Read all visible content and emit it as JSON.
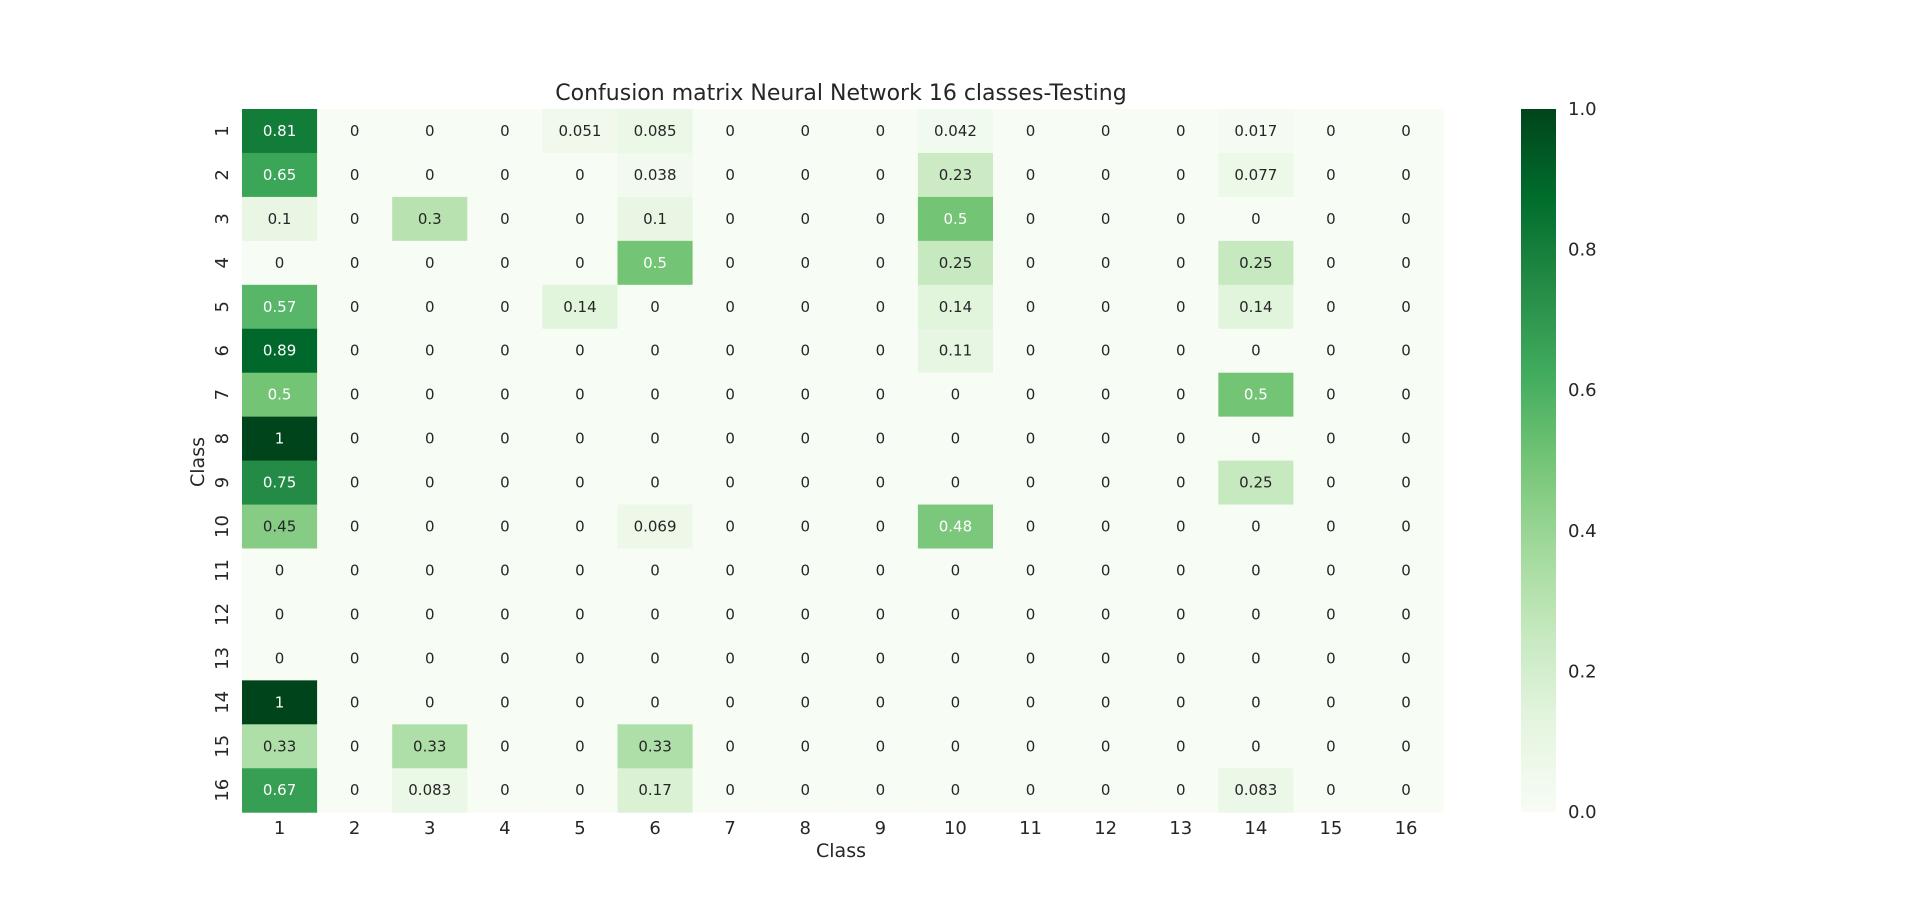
{
  "chart_data": {
    "type": "heatmap",
    "title": "Confusion matrix Neural Network 16 classes-Testing",
    "xlabel": "Class",
    "ylabel": "Class",
    "x_categories": [
      "1",
      "2",
      "3",
      "4",
      "5",
      "6",
      "7",
      "8",
      "9",
      "10",
      "11",
      "12",
      "13",
      "14",
      "15",
      "16"
    ],
    "y_categories": [
      "1",
      "2",
      "3",
      "4",
      "5",
      "6",
      "7",
      "8",
      "9",
      "10",
      "11",
      "12",
      "13",
      "14",
      "15",
      "16"
    ],
    "colormap": "Greens",
    "colorbar_range": [
      0.0,
      1.0
    ],
    "colorbar_ticks": [
      "0.0",
      "0.2",
      "0.4",
      "0.6",
      "0.8",
      "1.0"
    ],
    "cell_labels": [
      [
        "0.81",
        "0",
        "0",
        "0",
        "0.051",
        "0.085",
        "0",
        "0",
        "0",
        "0.042",
        "0",
        "0",
        "0",
        "0.017",
        "0",
        "0"
      ],
      [
        "0.65",
        "0",
        "0",
        "0",
        "0",
        "0.038",
        "0",
        "0",
        "0",
        "0.23",
        "0",
        "0",
        "0",
        "0.077",
        "0",
        "0"
      ],
      [
        "0.1",
        "0",
        "0.3",
        "0",
        "0",
        "0.1",
        "0",
        "0",
        "0",
        "0.5",
        "0",
        "0",
        "0",
        "0",
        "0",
        "0"
      ],
      [
        "0",
        "0",
        "0",
        "0",
        "0",
        "0.5",
        "0",
        "0",
        "0",
        "0.25",
        "0",
        "0",
        "0",
        "0.25",
        "0",
        "0"
      ],
      [
        "0.57",
        "0",
        "0",
        "0",
        "0.14",
        "0",
        "0",
        "0",
        "0",
        "0.14",
        "0",
        "0",
        "0",
        "0.14",
        "0",
        "0"
      ],
      [
        "0.89",
        "0",
        "0",
        "0",
        "0",
        "0",
        "0",
        "0",
        "0",
        "0.11",
        "0",
        "0",
        "0",
        "0",
        "0",
        "0"
      ],
      [
        "0.5",
        "0",
        "0",
        "0",
        "0",
        "0",
        "0",
        "0",
        "0",
        "0",
        "0",
        "0",
        "0",
        "0.5",
        "0",
        "0"
      ],
      [
        "1",
        "0",
        "0",
        "0",
        "0",
        "0",
        "0",
        "0",
        "0",
        "0",
        "0",
        "0",
        "0",
        "0",
        "0",
        "0"
      ],
      [
        "0.75",
        "0",
        "0",
        "0",
        "0",
        "0",
        "0",
        "0",
        "0",
        "0",
        "0",
        "0",
        "0",
        "0.25",
        "0",
        "0"
      ],
      [
        "0.45",
        "0",
        "0",
        "0",
        "0",
        "0.069",
        "0",
        "0",
        "0",
        "0.48",
        "0",
        "0",
        "0",
        "0",
        "0",
        "0"
      ],
      [
        "0",
        "0",
        "0",
        "0",
        "0",
        "0",
        "0",
        "0",
        "0",
        "0",
        "0",
        "0",
        "0",
        "0",
        "0",
        "0"
      ],
      [
        "0",
        "0",
        "0",
        "0",
        "0",
        "0",
        "0",
        "0",
        "0",
        "0",
        "0",
        "0",
        "0",
        "0",
        "0",
        "0"
      ],
      [
        "0",
        "0",
        "0",
        "0",
        "0",
        "0",
        "0",
        "0",
        "0",
        "0",
        "0",
        "0",
        "0",
        "0",
        "0",
        "0"
      ],
      [
        "1",
        "0",
        "0",
        "0",
        "0",
        "0",
        "0",
        "0",
        "0",
        "0",
        "0",
        "0",
        "0",
        "0",
        "0",
        "0"
      ],
      [
        "0.33",
        "0",
        "0.33",
        "0",
        "0",
        "0.33",
        "0",
        "0",
        "0",
        "0",
        "0",
        "0",
        "0",
        "0",
        "0",
        "0"
      ],
      [
        "0.67",
        "0",
        "0.083",
        "0",
        "0",
        "0.17",
        "0",
        "0",
        "0",
        "0",
        "0",
        "0",
        "0",
        "0.083",
        "0",
        "0"
      ]
    ]
  }
}
